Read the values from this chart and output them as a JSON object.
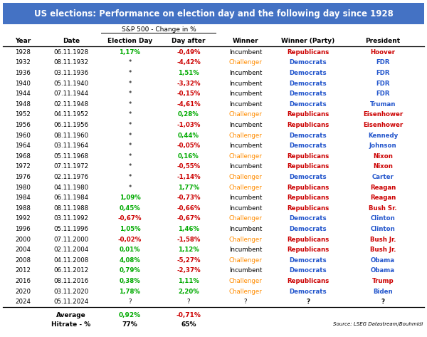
{
  "title": "US elections: Performance on election day and the following day since 1928",
  "title_bg": "#4472C4",
  "title_fg": "#FFFFFF",
  "col_headers": [
    "Year",
    "Date",
    "Election Day",
    "Day after",
    "Winner",
    "Winner (Party)",
    "President"
  ],
  "subheader": "S&P 500 - Change in %",
  "rows": [
    [
      "1928",
      "06.11.1928",
      "1,17%",
      "-0,49%",
      "Incumbent",
      "Republicans",
      "Hoover"
    ],
    [
      "1932",
      "08.11.1932",
      "*",
      "-4,42%",
      "Challenger",
      "Democrats",
      "FDR"
    ],
    [
      "1936",
      "03.11.1936",
      "*",
      "1,51%",
      "Incumbent",
      "Democrats",
      "FDR"
    ],
    [
      "1940",
      "05.11.1940",
      "*",
      "-3,32%",
      "Incumbent",
      "Democrats",
      "FDR"
    ],
    [
      "1944",
      "07.11.1944",
      "*",
      "-0,15%",
      "Incumbent",
      "Democrats",
      "FDR"
    ],
    [
      "1948",
      "02.11.1948",
      "*",
      "-4,61%",
      "Incumbent",
      "Democrats",
      "Truman"
    ],
    [
      "1952",
      "04.11.1952",
      "*",
      "0,28%",
      "Challenger",
      "Republicans",
      "Eisenhower"
    ],
    [
      "1956",
      "06.11.1956",
      "*",
      "-1,03%",
      "Incumbent",
      "Republicans",
      "Eisenhower"
    ],
    [
      "1960",
      "08.11.1960",
      "*",
      "0,44%",
      "Challenger",
      "Democrats",
      "Kennedy"
    ],
    [
      "1964",
      "03.11.1964",
      "*",
      "-0,05%",
      "Incumbent",
      "Democrats",
      "Johnson"
    ],
    [
      "1968",
      "05.11.1968",
      "*",
      "0,16%",
      "Challenger",
      "Republicans",
      "Nixon"
    ],
    [
      "1972",
      "07.11.1972",
      "*",
      "-0,55%",
      "Incumbent",
      "Republicans",
      "Nixon"
    ],
    [
      "1976",
      "02.11.1976",
      "*",
      "-1,14%",
      "Challenger",
      "Democrats",
      "Carter"
    ],
    [
      "1980",
      "04.11.1980",
      "*",
      "1,77%",
      "Challenger",
      "Republicans",
      "Reagan"
    ],
    [
      "1984",
      "06.11.1984",
      "1,09%",
      "-0,73%",
      "Incumbent",
      "Republicans",
      "Reagan"
    ],
    [
      "1988",
      "08.11.1988",
      "0,45%",
      "-0,66%",
      "Incumbent",
      "Republicans",
      "Bush Sr."
    ],
    [
      "1992",
      "03.11.1992",
      "-0,67%",
      "-0,67%",
      "Challenger",
      "Democrats",
      "Clinton"
    ],
    [
      "1996",
      "05.11.1996",
      "1,05%",
      "1,46%",
      "Incumbent",
      "Democrats",
      "Clinton"
    ],
    [
      "2000",
      "07.11.2000",
      "-0,02%",
      "-1,58%",
      "Challenger",
      "Republicans",
      "Bush Jr."
    ],
    [
      "2004",
      "02.11.2004",
      "0,01%",
      "1,12%",
      "Incumbent",
      "Republicans",
      "Bush Jr."
    ],
    [
      "2008",
      "04.11.2008",
      "4,08%",
      "-5,27%",
      "Challenger",
      "Democrats",
      "Obama"
    ],
    [
      "2012",
      "06.11.2012",
      "0,79%",
      "-2,37%",
      "Incumbent",
      "Democrats",
      "Obama"
    ],
    [
      "2016",
      "08.11.2016",
      "0,38%",
      "1,11%",
      "Challenger",
      "Republicans",
      "Trump"
    ],
    [
      "2020",
      "03.11.2020",
      "1,78%",
      "2,20%",
      "Challenger",
      "Democrats",
      "Biden"
    ],
    [
      "2024",
      "05.11.2024",
      "?",
      "?",
      "?",
      "?",
      "?"
    ]
  ],
  "source": "Source: LSEG Datastream/Bouhmidi",
  "fig_bg": "#FFFFFF",
  "green": "#00AA00",
  "red": "#CC0000",
  "blue": "#2255CC",
  "orange": "#FF8C00"
}
